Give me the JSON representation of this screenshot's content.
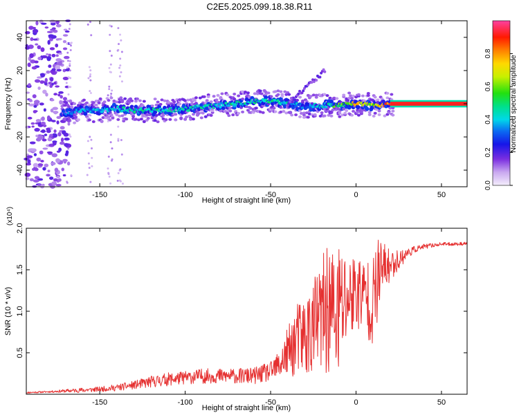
{
  "title": "C2E5.2025.099.18.38.R11",
  "chart_data": [
    {
      "type": "heatmap",
      "xlabel": "Height of straight line (km)",
      "ylabel": "Frequency (Hz)",
      "xlim": [
        -193,
        65
      ],
      "ylim": [
        -50,
        50
      ],
      "x_ticks": [
        -150,
        -100,
        -50,
        0,
        50
      ],
      "y_ticks": [
        -40,
        -20,
        0,
        20,
        40
      ],
      "colorbar": {
        "label": "Normalized spectral amplitude",
        "range": [
          0,
          1
        ],
        "ticks": [
          "0.0",
          "0.2",
          "0.4",
          "0.6",
          "0.8"
        ],
        "colormap": "rainbow (violet → blue → cyan → green → yellow → red)"
      },
      "ridge": {
        "x": [
          -172,
          -160,
          -150,
          -140,
          -130,
          -120,
          -110,
          -100,
          -90,
          -80,
          -70,
          -60,
          -50,
          -40,
          -30,
          -20,
          -10,
          0,
          10,
          20,
          30,
          40,
          50,
          60,
          65
        ],
        "frequency": [
          -6,
          -4,
          -4,
          -3,
          -4,
          -4,
          -4,
          -3,
          -2,
          -1,
          0,
          1,
          2,
          0,
          -2,
          -1,
          -1,
          0,
          -1,
          0,
          0,
          0,
          0,
          0,
          0
        ],
        "amplitude": [
          0.35,
          0.4,
          0.4,
          0.45,
          0.45,
          0.5,
          0.45,
          0.45,
          0.45,
          0.45,
          0.5,
          0.45,
          0.5,
          0.45,
          0.35,
          0.45,
          0.6,
          0.75,
          0.7,
          0.9,
          0.95,
          0.95,
          0.95,
          0.95,
          0.95
        ]
      }
    },
    {
      "type": "line",
      "xlabel": "Height of straight line (km)",
      "ylabel": "SNR (10 * v/v)",
      "scale_label": "(x10⁴)",
      "xlim": [
        -193,
        65
      ],
      "ylim": [
        0,
        2.0
      ],
      "x_ticks": [
        -150,
        -100,
        -50,
        0,
        50
      ],
      "y_ticks": [
        "0.5",
        "1.0",
        "1.5",
        "2.0"
      ],
      "color": "#e53030",
      "series": [
        {
          "x": [
            -193,
            -180,
            -170,
            -160,
            -150,
            -140,
            -130,
            -120,
            -110,
            -100,
            -90,
            -80,
            -70,
            -60,
            -50,
            -45,
            -40,
            -35,
            -30,
            -25,
            -20,
            -15,
            -12,
            -10,
            -5,
            0,
            5,
            10,
            13,
            15,
            20,
            25,
            30,
            35,
            40,
            50,
            60,
            65
          ],
          "y": [
            0.02,
            0.03,
            0.04,
            0.05,
            0.06,
            0.08,
            0.11,
            0.15,
            0.18,
            0.2,
            0.22,
            0.22,
            0.22,
            0.22,
            0.27,
            0.35,
            0.5,
            0.65,
            0.7,
            0.8,
            0.95,
            1.05,
            0.9,
            1.0,
            1.15,
            1.25,
            1.2,
            1.1,
            1.4,
            1.5,
            1.55,
            1.62,
            1.7,
            1.75,
            1.78,
            1.81,
            1.81,
            1.82
          ],
          "spread": [
            0.01,
            0.01,
            0.02,
            0.03,
            0.03,
            0.04,
            0.05,
            0.07,
            0.08,
            0.08,
            0.09,
            0.09,
            0.09,
            0.1,
            0.12,
            0.18,
            0.3,
            0.45,
            0.5,
            0.6,
            0.7,
            0.85,
            0.8,
            0.9,
            0.55,
            0.5,
            0.45,
            0.55,
            0.5,
            0.35,
            0.2,
            0.12,
            0.06,
            0.04,
            0.03,
            0.02,
            0.02,
            0.02
          ]
        }
      ]
    }
  ]
}
